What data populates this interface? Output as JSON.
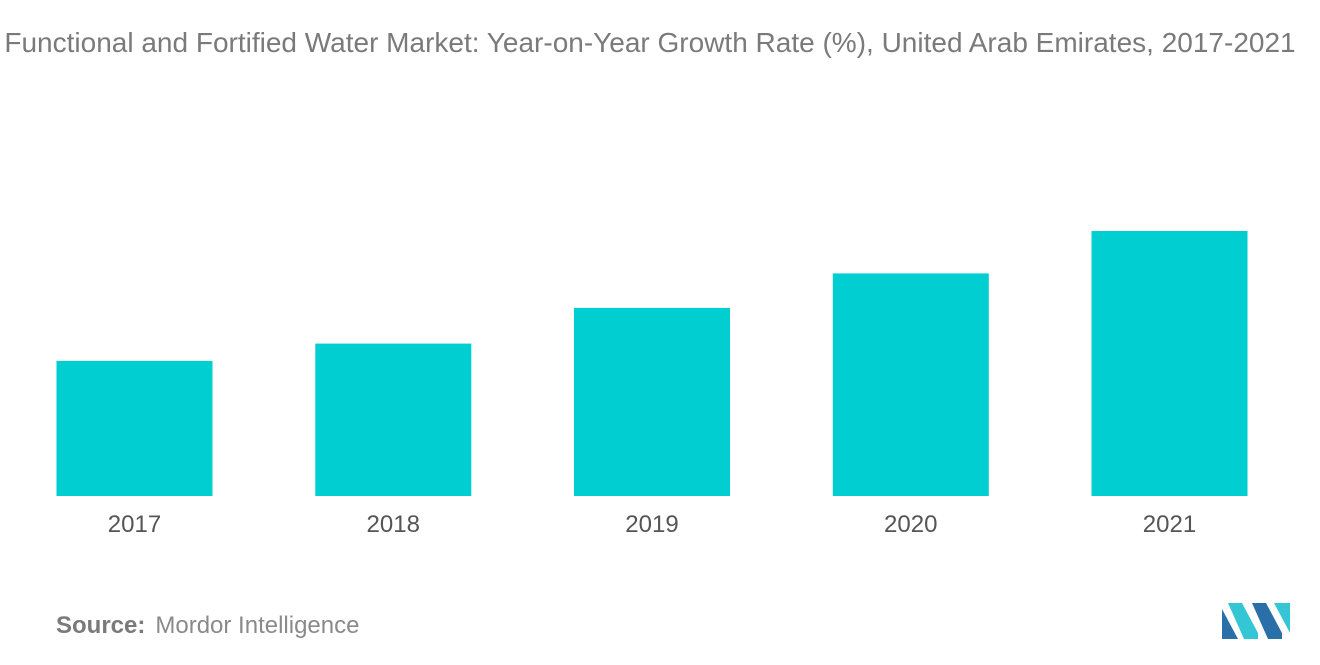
{
  "title": "Functional and Fortified Water Market: Year-on-Year Growth Rate (%), United Arab Emirates, 2017-2021",
  "source_label": "Source:",
  "source_value": "Mordor Intelligence",
  "logo": "mordor-intelligence-logo-icon",
  "colors": {
    "bar": "#00CED1",
    "title": "#7a7a7a",
    "tick": "#555555",
    "logo_dark": "#2a6fa8",
    "logo_light": "#35c6d6"
  },
  "chart_data": {
    "type": "bar",
    "title": "Functional and Fortified Water Market: Year-on-Year Growth Rate (%), United Arab Emirates, 2017-2021",
    "categories": [
      "2017",
      "2018",
      "2019",
      "2020",
      "2021"
    ],
    "values": [
      5.1,
      5.75,
      7.1,
      8.4,
      10.0
    ],
    "xlabel": "",
    "ylabel": "",
    "ylim": [
      0,
      10.0
    ],
    "grid": false,
    "legend": "none"
  }
}
